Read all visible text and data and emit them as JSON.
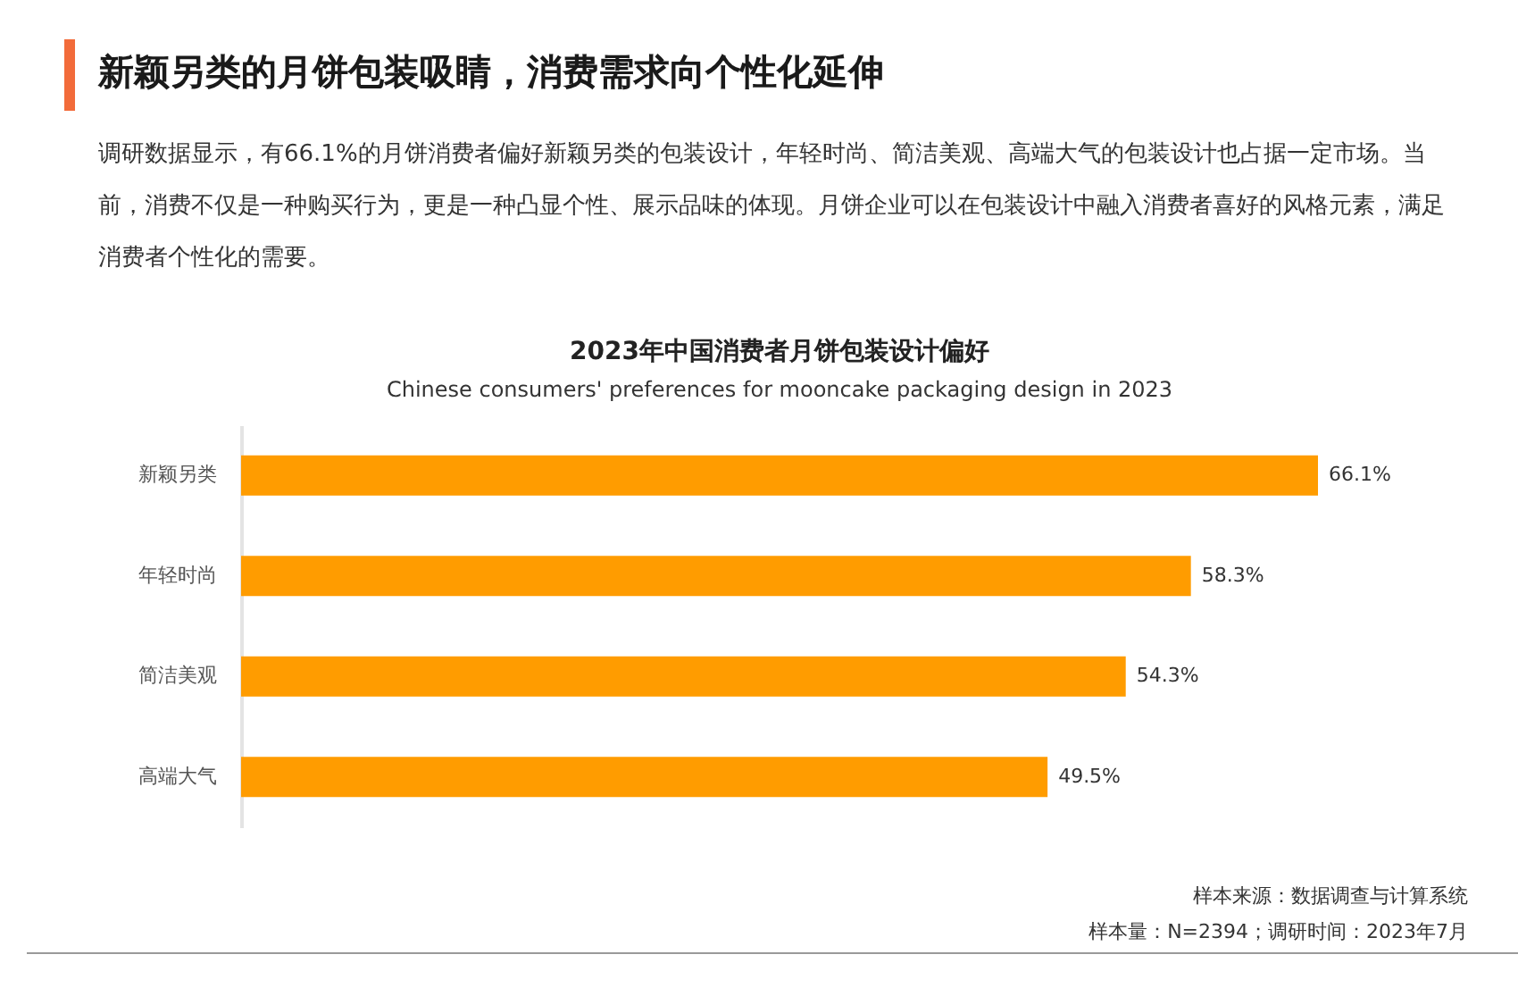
{
  "chart_data": {
    "type": "bar",
    "orientation": "horizontal",
    "title": "2023年中国消费者月饼包装设计偏好",
    "subtitle": "Chinese consumers' preferences for mooncake packaging design in 2023",
    "categories": [
      "新颖另类",
      "年轻时尚",
      "简洁美观",
      "高端大气"
    ],
    "values": [
      66.1,
      58.3,
      54.3,
      49.5
    ],
    "value_labels": [
      "66.1%",
      "58.3%",
      "54.3%",
      "49.5%"
    ],
    "color": "#ff9c00",
    "annotations": [
      "新颖另类的月饼包装吸睛，消费需求向个性化延伸",
      "调研数据显示，有66.1%的月饼消费者偏好新颖另类的包装设计，年轻时尚、简洁美观、高端大气的包装设计也占据一定市场。当前，消费不仅是一种购买行为，更是一种凸显个性、展示品味的体现。月饼企业可以在包装设计中融入消费者喜好的风格元素，满足消费者个性化的需要。",
      "样本来源：数据调查与计算系统",
      "样本量：N=2394；调研时间：2023年7月"
    ]
  }
}
